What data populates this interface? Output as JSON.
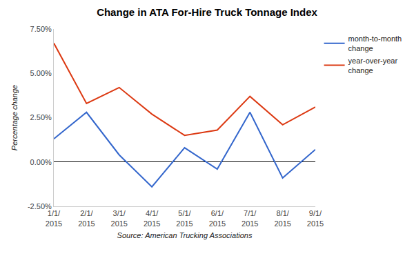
{
  "chart_data": {
    "type": "line",
    "title": "Change in ATA For-Hire Truck Tonnage Index",
    "x_label": "Source: American Trucking Associations",
    "y_label": "Percentage change",
    "categories": [
      "1/1/2015",
      "2/1/2015",
      "3/1/2015",
      "4/1/2015",
      "5/1/2015",
      "6/1/2015",
      "7/1/2015",
      "8/1/2015",
      "9/1/2015"
    ],
    "series": [
      {
        "name": "month-to-month change",
        "color": "#3366cc",
        "values": [
          1.3,
          2.8,
          0.4,
          -1.4,
          0.8,
          -0.4,
          2.8,
          -0.9,
          0.7
        ]
      },
      {
        "name": "year-over-year change",
        "color": "#dc3912",
        "values": [
          6.7,
          3.3,
          4.2,
          2.7,
          1.5,
          1.8,
          3.7,
          2.1,
          3.1
        ]
      }
    ],
    "ylim": [
      -2.5,
      7.5
    ],
    "yticks": [
      {
        "value": -2.5,
        "label": "-2.50%"
      },
      {
        "value": 0,
        "label": "0.00%"
      },
      {
        "value": 2.5,
        "label": "2.50%"
      },
      {
        "value": 5,
        "label": "5.00%"
      },
      {
        "value": 7.5,
        "label": "7.50%"
      }
    ],
    "grid": false,
    "legend": "right"
  }
}
